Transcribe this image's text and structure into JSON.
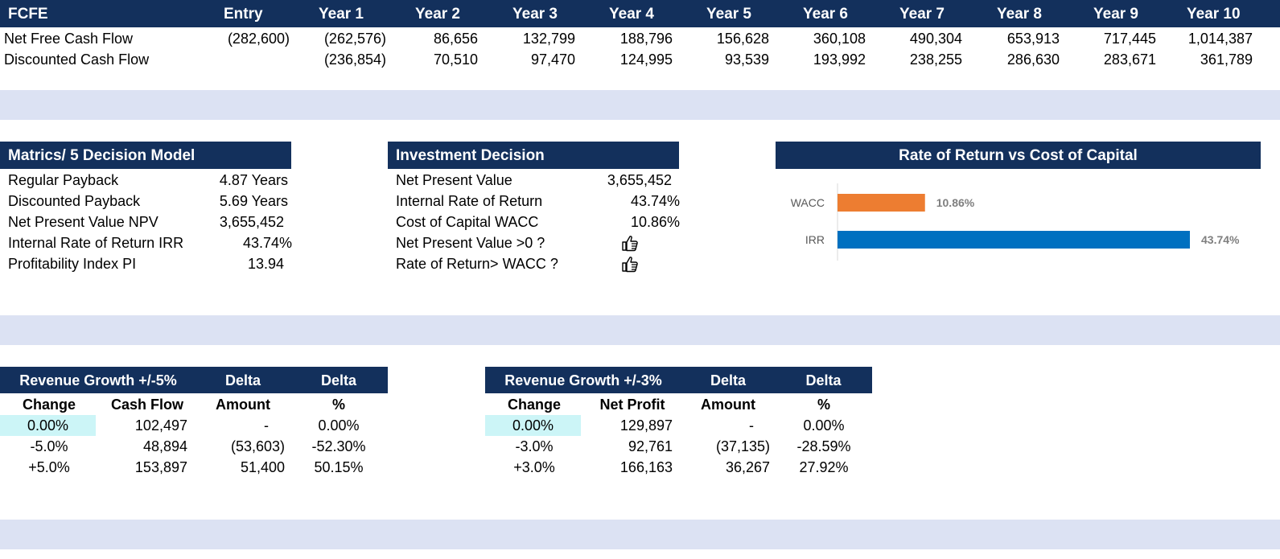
{
  "fcfe": {
    "header": [
      "FCFE",
      "Entry",
      "Year 1",
      "Year 2",
      "Year 3",
      "Year 4",
      "Year 5",
      "Year 6",
      "Year 7",
      "Year 8",
      "Year 9",
      "Year 10"
    ],
    "rows": [
      {
        "label": "Net Free Cash Flow",
        "values": [
          "(282,600)",
          "(262,576)",
          "86,656",
          "132,799",
          "188,796",
          "156,628",
          "360,108",
          "490,304",
          "653,913",
          "717,445",
          "1,014,387"
        ]
      },
      {
        "label": "Discounted Cash Flow",
        "values": [
          "",
          "(236,854)",
          "70,510",
          "97,470",
          "124,995",
          "93,539",
          "193,992",
          "238,255",
          "286,630",
          "283,671",
          "361,789"
        ]
      }
    ]
  },
  "metrics": {
    "title": "Matrics/ 5 Decision Model",
    "rows": [
      {
        "label": "Regular Payback",
        "value": "4.87 Years"
      },
      {
        "label": "Discounted Payback",
        "value": "5.69 Years"
      },
      {
        "label": "Net Present Value NPV",
        "value": "3,655,452"
      },
      {
        "label": "Internal Rate of Return IRR",
        "value": "43.74%"
      },
      {
        "label": "Profitability Index PI",
        "value": "13.94"
      }
    ]
  },
  "investment": {
    "title": "Investment Decision",
    "rows": [
      {
        "label": "Net Present Value",
        "value": "3,655,452"
      },
      {
        "label": "Internal Rate of Return",
        "value": "43.74%"
      },
      {
        "label": "Cost of Capital WACC",
        "value": "10.86%"
      },
      {
        "label": "Net Present Value >0 ?",
        "icon": "thumbs-up-icon"
      },
      {
        "label": "Rate of Return> WACC ?",
        "icon": "thumbs-up-icon"
      }
    ]
  },
  "chart_data": {
    "type": "bar",
    "title": "Rate of Return vs Cost of Capital",
    "orientation": "horizontal",
    "categories": [
      "WACC",
      "IRR"
    ],
    "values": [
      10.86,
      43.74
    ],
    "data_labels": [
      "10.86%",
      "43.74%"
    ],
    "colors": [
      "#ed7d31",
      "#0070c0"
    ],
    "xlim": [
      0,
      43.74
    ],
    "grid": false
  },
  "sens1": {
    "header": [
      "Revenue Growth +/-5%",
      "Delta",
      "Delta"
    ],
    "subheader": [
      "Change",
      "Cash Flow",
      "Amount",
      "%"
    ],
    "rows": [
      [
        "0.00%",
        "102,497",
        "-",
        "0.00%"
      ],
      [
        "-5.0%",
        "48,894",
        "(53,603)",
        "-52.30%"
      ],
      [
        "+5.0%",
        "153,897",
        "51,400",
        "50.15%"
      ]
    ]
  },
  "sens2": {
    "header": [
      "Revenue Growth +/-3%",
      "Delta",
      "Delta"
    ],
    "subheader": [
      "Change",
      "Net Profit",
      "Amount",
      "%"
    ],
    "rows": [
      [
        "0.00%",
        "129,897",
        "-",
        "0.00%"
      ],
      [
        "-3.0%",
        "92,761",
        "(37,135)",
        "-28.59%"
      ],
      [
        "+3.0%",
        "166,163",
        "36,267",
        "27.92%"
      ]
    ]
  },
  "colors": {
    "navy": "#13305c",
    "band": "#dce2f3",
    "highlight": "#ccf5f7"
  }
}
